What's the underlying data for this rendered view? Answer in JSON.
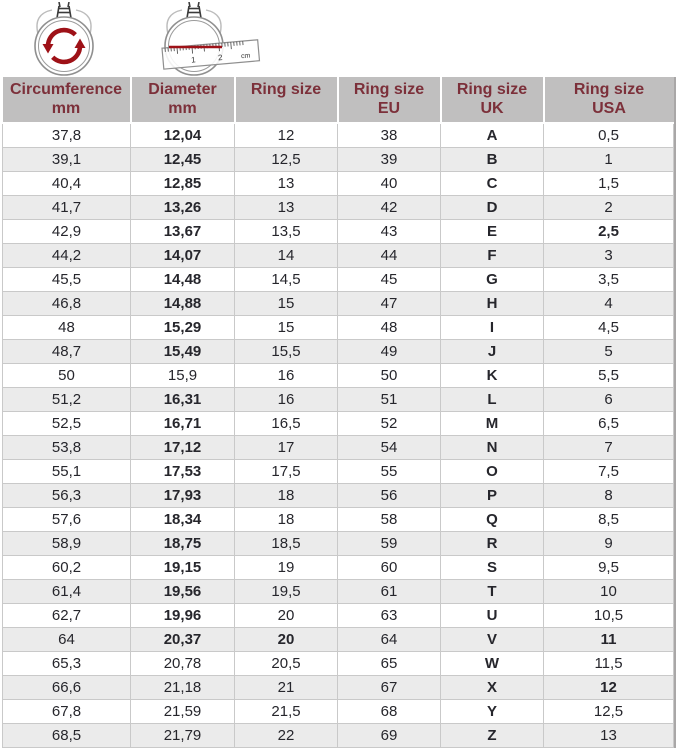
{
  "icons": {
    "circumference_icon": "ring-with-rotation-arrows",
    "diameter_icon": "ring-with-ruler-measuring-diameter",
    "ruler_labels": {
      "one": "1",
      "two": "2",
      "unit": "cm"
    }
  },
  "colors": {
    "header_bg": "#c0bfbf",
    "header_text": "#7c303a",
    "row_bg": "#ffffff",
    "row_alt_bg": "#ebebeb",
    "grid_border": "#c9c9c9",
    "body_text": "#26262c",
    "accent_red": "#9e1117",
    "right_shadow": "#a9a7a7"
  },
  "formatting": {
    "bold_columns": [
      1,
      4
    ],
    "not_bold_cells": [
      [
        10,
        1
      ],
      [
        22,
        1
      ],
      [
        23,
        1
      ],
      [
        24,
        1
      ],
      [
        25,
        1
      ]
    ],
    "bold_cells": [
      [
        4,
        5
      ],
      [
        21,
        2
      ],
      [
        21,
        5
      ],
      [
        23,
        5
      ]
    ]
  },
  "chart_data": {
    "type": "table",
    "title": "",
    "columns": [
      {
        "line1": "Circumference",
        "line2": "mm"
      },
      {
        "line1": "Diameter",
        "line2": "mm"
      },
      {
        "line1": "Ring size",
        "line2": ""
      },
      {
        "line1": "Ring size",
        "line2": "EU"
      },
      {
        "line1": "Ring size",
        "line2": "UK"
      },
      {
        "line1": "Ring size",
        "line2": "USA"
      }
    ],
    "rows": [
      [
        "37,8",
        "12,04",
        "12",
        "38",
        "A",
        "0,5"
      ],
      [
        "39,1",
        "12,45",
        "12,5",
        "39",
        "B",
        "1"
      ],
      [
        "40,4",
        "12,85",
        "13",
        "40",
        "C",
        "1,5"
      ],
      [
        "41,7",
        "13,26",
        "13",
        "42",
        "D",
        "2"
      ],
      [
        "42,9",
        "13,67",
        "13,5",
        "43",
        "E",
        "2,5"
      ],
      [
        "44,2",
        "14,07",
        "14",
        "44",
        "F",
        "3"
      ],
      [
        "45,5",
        "14,48",
        "14,5",
        "45",
        "G",
        "3,5"
      ],
      [
        "46,8",
        "14,88",
        "15",
        "47",
        "H",
        "4"
      ],
      [
        "48",
        "15,29",
        "15",
        "48",
        "I",
        "4,5"
      ],
      [
        "48,7",
        "15,49",
        "15,5",
        "49",
        "J",
        "5"
      ],
      [
        "50",
        "15,9",
        "16",
        "50",
        "K",
        "5,5"
      ],
      [
        "51,2",
        "16,31",
        "16",
        "51",
        "L",
        "6"
      ],
      [
        "52,5",
        "16,71",
        "16,5",
        "52",
        "M",
        "6,5"
      ],
      [
        "53,8",
        "17,12",
        "17",
        "54",
        "N",
        "7"
      ],
      [
        "55,1",
        "17,53",
        "17,5",
        "55",
        "O",
        "7,5"
      ],
      [
        "56,3",
        "17,93",
        "18",
        "56",
        "P",
        "8"
      ],
      [
        "57,6",
        "18,34",
        "18",
        "58",
        "Q",
        "8,5"
      ],
      [
        "58,9",
        "18,75",
        "18,5",
        "59",
        "R",
        "9"
      ],
      [
        "60,2",
        "19,15",
        "19",
        "60",
        "S",
        "9,5"
      ],
      [
        "61,4",
        "19,56",
        "19,5",
        "61",
        "T",
        "10"
      ],
      [
        "62,7",
        "19,96",
        "20",
        "63",
        "U",
        "10,5"
      ],
      [
        "64",
        "20,37",
        "20",
        "64",
        "V",
        "11"
      ],
      [
        "65,3",
        "20,78",
        "20,5",
        "65",
        "W",
        "11,5"
      ],
      [
        "66,6",
        "21,18",
        "21",
        "67",
        "X",
        "12"
      ],
      [
        "67,8",
        "21,59",
        "21,5",
        "68",
        "Y",
        "12,5"
      ],
      [
        "68,5",
        "21,79",
        "22",
        "69",
        "Z",
        "13"
      ]
    ]
  }
}
